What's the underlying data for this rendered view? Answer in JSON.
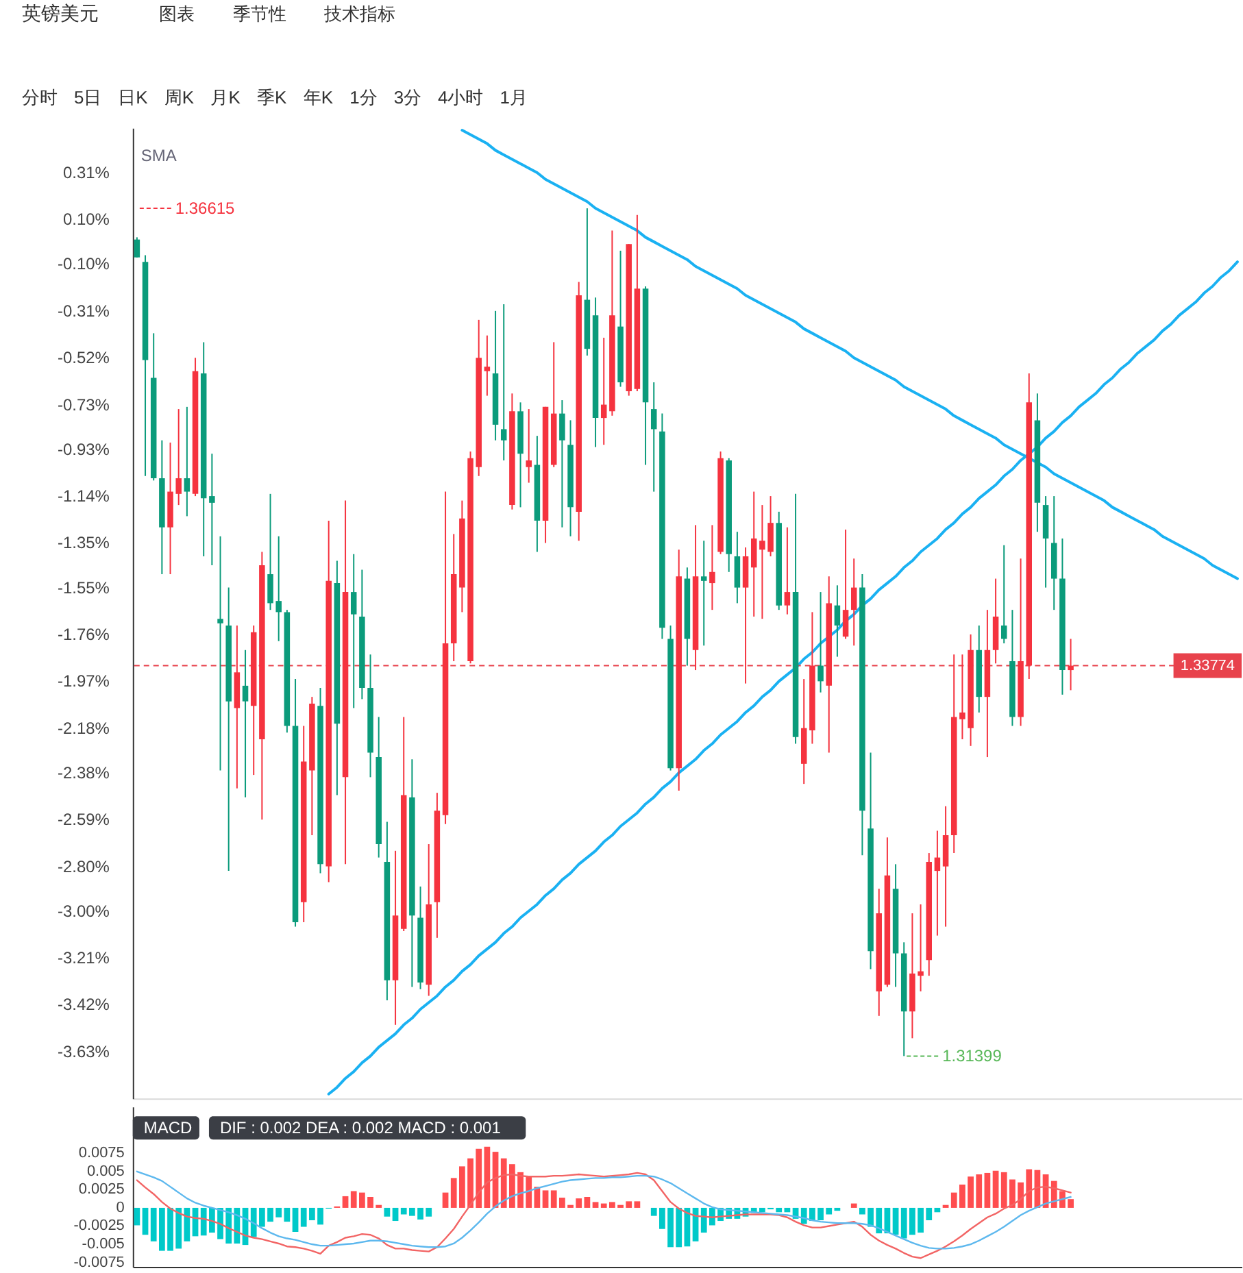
{
  "chart_data": [
    {
      "type": "other",
      "title": "英镑美元",
      "annotations": [
        "图表",
        "季节性",
        "技术指标"
      ]
    },
    {
      "type": "other",
      "annotations": [
        "分时",
        "5日",
        "日K",
        "周K",
        "月K",
        "季K",
        "年K",
        "1分",
        "3分",
        "4小时",
        "1月"
      ]
    },
    {
      "type": "candlestick",
      "categories": [
        null,
        null,
        null,
        null,
        null,
        null,
        null,
        null,
        null,
        null,
        null,
        null,
        null,
        null,
        null,
        null,
        null,
        null,
        null,
        null,
        null,
        null,
        null,
        null,
        null,
        null,
        null,
        null,
        null,
        null,
        null,
        null,
        null,
        null,
        null,
        null,
        null,
        null,
        null,
        null,
        null,
        null,
        null,
        null,
        null,
        null,
        null,
        null,
        null,
        null,
        null,
        null,
        null,
        null,
        null,
        null,
        null,
        null,
        null,
        null,
        null,
        null,
        null,
        null,
        null,
        null,
        null,
        null,
        null,
        null,
        null,
        null,
        null,
        null,
        null,
        null,
        null,
        null,
        null,
        null,
        null,
        null,
        null,
        null,
        null,
        null,
        null,
        null,
        null,
        null,
        null,
        null,
        null,
        null,
        null,
        null,
        null,
        null,
        null,
        null,
        null,
        null,
        null,
        null,
        null,
        null,
        null,
        null,
        null,
        null,
        null,
        null,
        null,
        null,
        null,
        null,
        null,
        null,
        null,
        null,
        null,
        null,
        null,
        null,
        null,
        null,
        null,
        null,
        null,
        null,
        null,
        null,
        null
      ],
      "ohlc": [
        [
          0.01,
          0.02,
          -0.07,
          -0.07
        ],
        [
          -0.09,
          -0.06,
          -1.05,
          -0.53
        ],
        [
          -0.61,
          -0.41,
          -1.07,
          -1.06
        ],
        [
          -1.06,
          -0.89,
          -1.49,
          -1.28
        ],
        [
          -1.28,
          -0.9,
          -1.49,
          -1.12
        ],
        [
          -1.13,
          -0.75,
          -1.18,
          -1.06
        ],
        [
          -1.06,
          -0.74,
          -1.23,
          -1.12
        ],
        [
          -1.13,
          -0.52,
          -1.14,
          -0.58
        ],
        [
          -0.59,
          -0.45,
          -1.41,
          -1.15
        ],
        [
          -1.14,
          -0.95,
          -1.45,
          -1.17
        ],
        [
          -1.69,
          -1.32,
          -2.37,
          -1.71
        ],
        [
          -1.72,
          -1.55,
          -2.82,
          -2.06
        ],
        [
          -2.09,
          -1.72,
          -2.45,
          -1.93
        ],
        [
          -1.99,
          -1.83,
          -2.49,
          -2.06
        ],
        [
          -2.08,
          -1.72,
          -2.39,
          -1.75
        ],
        [
          -2.23,
          -1.39,
          -2.59,
          -1.45
        ],
        [
          -1.49,
          -1.13,
          -1.65,
          -1.62
        ],
        [
          -1.61,
          -1.32,
          -1.79,
          -1.66
        ],
        [
          -1.66,
          -1.65,
          -2.2,
          -2.17
        ],
        [
          -2.17,
          -1.96,
          -3.07,
          -3.05
        ],
        [
          -2.96,
          -2.17,
          -3.05,
          -2.33
        ],
        [
          -2.37,
          -2.04,
          -2.66,
          -2.07
        ],
        [
          -2.08,
          -2.0,
          -2.83,
          -2.79
        ],
        [
          -2.8,
          -1.25,
          -2.87,
          -1.52
        ],
        [
          -1.53,
          -1.43,
          -2.48,
          -2.16
        ],
        [
          -2.4,
          -1.16,
          -2.79,
          -1.57
        ],
        [
          -1.57,
          -1.4,
          -2.09,
          -1.67
        ],
        [
          -1.68,
          -1.47,
          -2.05,
          -2.0
        ],
        [
          -2.0,
          -1.85,
          -2.4,
          -2.29
        ],
        [
          -2.31,
          -2.13,
          -2.76,
          -2.7
        ],
        [
          -2.78,
          -2.6,
          -3.4,
          -3.31
        ],
        [
          -3.31,
          -2.73,
          -3.51,
          -3.02
        ],
        [
          -3.08,
          -2.13,
          -3.09,
          -2.48
        ],
        [
          -2.49,
          -2.32,
          -3.34,
          -3.02
        ],
        [
          -3.03,
          -2.89,
          -3.35,
          -3.32
        ],
        [
          -3.33,
          -2.7,
          -3.38,
          -2.97
        ],
        [
          -2.96,
          -2.47,
          -3.12,
          -2.55
        ],
        [
          -2.57,
          -1.12,
          -2.61,
          -1.8
        ],
        [
          -1.8,
          -1.31,
          -1.88,
          -1.49
        ],
        [
          -1.55,
          -1.16,
          -1.66,
          -1.24
        ],
        [
          -1.88,
          -0.94,
          -1.89,
          -0.97
        ],
        [
          -1.01,
          -0.35,
          -1.05,
          -0.52
        ],
        [
          -0.58,
          -0.42,
          -0.69,
          -0.56
        ],
        [
          -0.59,
          -0.31,
          -0.89,
          -0.82
        ],
        [
          -0.84,
          -0.28,
          -0.98,
          -0.89
        ],
        [
          -1.18,
          -0.68,
          -1.2,
          -0.76
        ],
        [
          -0.76,
          -0.72,
          -1.19,
          -0.95
        ],
        [
          -1.01,
          -0.75,
          -1.08,
          -0.98
        ],
        [
          -1.0,
          -0.87,
          -1.39,
          -1.25
        ],
        [
          -1.25,
          -0.74,
          -1.35,
          -0.74
        ],
        [
          -1.0,
          -0.45,
          -1.01,
          -0.77
        ],
        [
          -0.77,
          -0.71,
          -1.28,
          -0.89
        ],
        [
          -0.91,
          -0.8,
          -1.32,
          -1.19
        ],
        [
          -1.21,
          -0.18,
          -1.34,
          -0.24
        ],
        [
          -0.26,
          0.15,
          -0.51,
          -0.48
        ],
        [
          -0.33,
          -0.25,
          -0.92,
          -0.79
        ],
        [
          -0.79,
          -0.43,
          -0.91,
          -0.73
        ],
        [
          -0.76,
          0.05,
          -0.78,
          -0.33
        ],
        [
          -0.38,
          -0.04,
          -0.65,
          -0.63
        ],
        [
          -0.67,
          -0.01,
          -0.69,
          -0.01
        ],
        [
          -0.66,
          0.12,
          -0.67,
          -0.21
        ],
        [
          -0.21,
          -0.2,
          -1.0,
          -0.72
        ],
        [
          -0.75,
          -0.63,
          -1.12,
          -0.84
        ],
        [
          -0.85,
          -0.77,
          -1.78,
          -1.73
        ],
        [
          -1.78,
          -1.72,
          -2.37,
          -2.36
        ],
        [
          -2.36,
          -1.38,
          -2.46,
          -1.5
        ],
        [
          -1.51,
          -1.46,
          -1.9,
          -1.78
        ],
        [
          -1.83,
          -1.27,
          -1.92,
          -1.5
        ],
        [
          -1.5,
          -1.34,
          -1.81,
          -1.52
        ],
        [
          -1.53,
          -1.27,
          -1.65,
          -1.48
        ],
        [
          -1.39,
          -0.94,
          -1.4,
          -0.97
        ],
        [
          -0.98,
          -0.97,
          -1.48,
          -1.4
        ],
        [
          -1.41,
          -1.3,
          -1.62,
          -1.55
        ],
        [
          -1.55,
          -1.37,
          -1.98,
          -1.41
        ],
        [
          -1.46,
          -1.12,
          -1.68,
          -1.33
        ],
        [
          -1.38,
          -1.18,
          -1.69,
          -1.34
        ],
        [
          -1.39,
          -1.14,
          -1.41,
          -1.26
        ],
        [
          -1.26,
          -1.21,
          -1.65,
          -1.63
        ],
        [
          -1.63,
          -1.28,
          -1.67,
          -1.57
        ],
        [
          -1.57,
          -1.13,
          -2.25,
          -2.22
        ],
        [
          -2.34,
          -1.96,
          -2.43,
          -2.18
        ],
        [
          -2.19,
          -1.66,
          -2.25,
          -1.9
        ],
        [
          -1.9,
          -1.57,
          -2.02,
          -1.97
        ],
        [
          -1.99,
          -1.5,
          -2.29,
          -1.62
        ],
        [
          -1.63,
          -1.54,
          -1.86,
          -1.72
        ],
        [
          -1.77,
          -1.29,
          -1.78,
          -1.65
        ],
        [
          -1.65,
          -1.42,
          -1.81,
          -1.55
        ],
        [
          -1.55,
          -1.49,
          -2.75,
          -2.55
        ],
        [
          -2.63,
          -2.29,
          -3.26,
          -3.18
        ],
        [
          -3.36,
          -2.9,
          -3.47,
          -3.01
        ],
        [
          -3.33,
          -2.67,
          -3.34,
          -2.84
        ],
        [
          -2.9,
          -2.79,
          -3.34,
          -3.19
        ],
        [
          -3.19,
          -3.14,
          -3.65,
          -3.45
        ],
        [
          -3.45,
          -3.01,
          -3.57,
          -3.28
        ],
        [
          -3.29,
          -2.97,
          -3.36,
          -3.27
        ],
        [
          -3.22,
          -2.74,
          -3.29,
          -2.78
        ],
        [
          -2.82,
          -2.64,
          -3.11,
          -2.76
        ],
        [
          -2.8,
          -2.53,
          -3.07,
          -2.66
        ],
        [
          -2.66,
          -1.85,
          -2.74,
          -2.13
        ],
        [
          -2.14,
          -1.85,
          -2.23,
          -2.11
        ],
        [
          -2.18,
          -1.76,
          -2.26,
          -1.83
        ],
        [
          -1.83,
          -1.72,
          -2.11,
          -2.04
        ],
        [
          -2.04,
          -1.65,
          -2.31,
          -1.83
        ],
        [
          -1.83,
          -1.51,
          -1.89,
          -1.68
        ],
        [
          -1.72,
          -1.36,
          -1.8,
          -1.78
        ],
        [
          -1.88,
          -1.65,
          -2.17,
          -2.13
        ],
        [
          -2.13,
          -1.42,
          -2.17,
          -1.88
        ],
        [
          -1.9,
          -0.59,
          -1.96,
          -0.72
        ],
        [
          -0.8,
          -0.68,
          -1.3,
          -1.17
        ],
        [
          -1.18,
          -1.14,
          -1.55,
          -1.33
        ],
        [
          -1.35,
          -1.14,
          -1.65,
          -1.51
        ],
        [
          -1.51,
          -1.33,
          -2.03,
          -1.92
        ],
        [
          -1.92,
          -1.78,
          -2.01,
          -1.9
        ],
        null,
        null,
        null,
        null,
        null,
        null,
        null,
        null,
        null,
        null,
        null,
        null,
        null,
        null,
        null,
        null,
        null,
        null,
        null,
        null
      ],
      "colors": [
        "#0b9b7b",
        "#0b9b7b",
        "#0b9b7b",
        "#0b9b7b",
        "#f5333f",
        "#f5333f",
        "#0b9b7b",
        "#f5333f",
        "#0b9b7b",
        "#0b9b7b",
        "#0b9b7b",
        "#0b9b7b",
        "#f5333f",
        "#0b9b7b",
        "#f5333f",
        "#f5333f",
        "#0b9b7b",
        "#0b9b7b",
        "#0b9b7b",
        "#0b9b7b",
        "#f5333f",
        "#f5333f",
        "#0b9b7b",
        "#f5333f",
        "#0b9b7b",
        "#f5333f",
        "#0b9b7b",
        "#0b9b7b",
        "#0b9b7b",
        "#0b9b7b",
        "#0b9b7b",
        "#f5333f",
        "#f5333f",
        "#0b9b7b",
        "#0b9b7b",
        "#f5333f",
        "#f5333f",
        "#f5333f",
        "#f5333f",
        "#f5333f",
        "#f5333f",
        "#f5333f",
        "#f5333f",
        "#0b9b7b",
        "#0b9b7b",
        "#f5333f",
        "#0b9b7b",
        "#f5333f",
        "#0b9b7b",
        "#f5333f",
        "#f5333f",
        "#0b9b7b",
        "#0b9b7b",
        "#f5333f",
        "#0b9b7b",
        "#0b9b7b",
        "#f5333f",
        "#f5333f",
        "#0b9b7b",
        "#f5333f",
        "#f5333f",
        "#0b9b7b",
        "#0b9b7b",
        "#0b9b7b",
        "#0b9b7b",
        "#f5333f",
        "#0b9b7b",
        "#f5333f",
        "#0b9b7b",
        "#f5333f",
        "#f5333f",
        "#0b9b7b",
        "#0b9b7b",
        "#f5333f",
        "#f5333f",
        "#f5333f",
        "#f5333f",
        "#0b9b7b",
        "#f5333f",
        "#0b9b7b",
        "#f5333f",
        "#f5333f",
        "#0b9b7b",
        "#f5333f",
        "#0b9b7b",
        "#f5333f",
        "#f5333f",
        "#0b9b7b",
        "#0b9b7b",
        "#f5333f",
        "#f5333f",
        "#0b9b7b",
        "#0b9b7b",
        "#f5333f",
        "#f5333f",
        "#f5333f",
        "#f5333f",
        "#f5333f",
        "#f5333f",
        "#f5333f",
        "#f5333f",
        "#0b9b7b",
        "#f5333f",
        "#f5333f",
        "#0b9b7b",
        "#0b9b7b",
        "#f5333f",
        "#f5333f",
        "#0b9b7b",
        "#0b9b7b",
        "#0b9b7b",
        "#0b9b7b",
        "#f5333f",
        null,
        null,
        null,
        null,
        null,
        null,
        null,
        null,
        null,
        null,
        null,
        null,
        null,
        null,
        null,
        null,
        null,
        null,
        null,
        null
      ],
      "series": [
        {
          "type": "line",
          "color": "#1ab1f2",
          "values": [
            null,
            null,
            null,
            null,
            null,
            null,
            null,
            null,
            null,
            null,
            null,
            null,
            null,
            null,
            null,
            null,
            null,
            null,
            null,
            null,
            null,
            null,
            null,
            null,
            null,
            null,
            null,
            null,
            null,
            null,
            null,
            null,
            null,
            null,
            null,
            null,
            null,
            null,
            null,
            0.5,
            0.48,
            0.46,
            0.44,
            0.41,
            0.39,
            0.37,
            0.35,
            0.33,
            0.31,
            0.28,
            0.26,
            0.24,
            0.22,
            0.2,
            0.18,
            0.15,
            0.13,
            0.11,
            0.09,
            0.07,
            0.05,
            0.02,
            0.0,
            -0.02,
            -0.04,
            -0.06,
            -0.08,
            -0.11,
            -0.13,
            -0.15,
            -0.17,
            -0.19,
            -0.21,
            -0.24,
            -0.26,
            -0.28,
            -0.3,
            -0.32,
            -0.34,
            -0.36,
            -0.39,
            -0.41,
            -0.43,
            -0.45,
            -0.47,
            -0.49,
            -0.52,
            -0.54,
            -0.56,
            -0.58,
            -0.6,
            -0.62,
            -0.65,
            -0.67,
            -0.69,
            -0.71,
            -0.73,
            -0.75,
            -0.78,
            -0.8,
            -0.82,
            -0.84,
            -0.86,
            -0.88,
            -0.91,
            -0.93,
            -0.95,
            -0.97,
            -0.99,
            -1.01,
            -1.04,
            -1.06,
            -1.08,
            -1.1,
            -1.12,
            -1.14,
            -1.16,
            -1.19,
            -1.21,
            -1.23,
            -1.25,
            -1.27,
            -1.29,
            -1.32,
            -1.34,
            -1.36,
            -1.38,
            -1.4,
            -1.42,
            -1.45,
            -1.47,
            -1.49,
            -1.51
          ]
        },
        {
          "type": "line",
          "color": "#1ab1f2",
          "values": [
            null,
            null,
            null,
            null,
            null,
            null,
            null,
            null,
            null,
            null,
            null,
            null,
            null,
            null,
            null,
            null,
            null,
            null,
            null,
            null,
            null,
            null,
            null,
            -3.82,
            -3.79,
            -3.75,
            -3.72,
            -3.68,
            -3.65,
            -3.61,
            -3.58,
            -3.55,
            -3.51,
            -3.48,
            -3.44,
            -3.41,
            -3.38,
            -3.34,
            -3.31,
            -3.27,
            -3.24,
            -3.2,
            -3.17,
            -3.14,
            -3.1,
            -3.07,
            -3.03,
            -3.0,
            -2.97,
            -2.93,
            -2.9,
            -2.86,
            -2.83,
            -2.79,
            -2.76,
            -2.73,
            -2.69,
            -2.66,
            -2.62,
            -2.59,
            -2.56,
            -2.52,
            -2.49,
            -2.45,
            -2.42,
            -2.38,
            -2.35,
            -2.32,
            -2.28,
            -2.25,
            -2.21,
            -2.18,
            -2.15,
            -2.11,
            -2.08,
            -2.04,
            -2.01,
            -1.97,
            -1.94,
            -1.91,
            -1.87,
            -1.84,
            -1.8,
            -1.77,
            -1.74,
            -1.7,
            -1.67,
            -1.63,
            -1.6,
            -1.56,
            -1.53,
            -1.5,
            -1.46,
            -1.43,
            -1.39,
            -1.36,
            -1.33,
            -1.29,
            -1.26,
            -1.22,
            -1.19,
            -1.15,
            -1.12,
            -1.09,
            -1.05,
            -1.02,
            -0.98,
            -0.95,
            -0.92,
            -0.88,
            -0.85,
            -0.81,
            -0.78,
            -0.74,
            -0.71,
            -0.68,
            -0.64,
            -0.61,
            -0.57,
            -0.54,
            -0.5,
            -0.47,
            -0.44,
            -0.4,
            -0.37,
            -0.33,
            -0.3,
            -0.27,
            -0.23,
            -0.2,
            -0.16,
            -0.13,
            -0.09
          ]
        }
      ],
      "ylim": [
        -3.84,
        0.51
      ],
      "yticks": [
        {
          "value": 0.31,
          "label": "0.31%"
        },
        {
          "value": 0.1,
          "label": "0.10%"
        },
        {
          "value": -0.1,
          "label": "-0.10%"
        },
        {
          "value": -0.31,
          "label": "-0.31%"
        },
        {
          "value": -0.52,
          "label": "-0.52%"
        },
        {
          "value": -0.73,
          "label": "-0.73%"
        },
        {
          "value": -0.93,
          "label": "-0.93%"
        },
        {
          "value": -1.14,
          "label": "-1.14%"
        },
        {
          "value": -1.35,
          "label": "-1.35%"
        },
        {
          "value": -1.55,
          "label": "-1.55%"
        },
        {
          "value": -1.76,
          "label": "-1.76%"
        },
        {
          "value": -1.97,
          "label": "-1.97%"
        },
        {
          "value": -2.18,
          "label": "-2.18%"
        },
        {
          "value": -2.38,
          "label": "-2.38%"
        },
        {
          "value": -2.59,
          "label": "-2.59%"
        },
        {
          "value": -2.8,
          "label": "-2.80%"
        },
        {
          "value": -3.0,
          "label": "-3.00%"
        },
        {
          "value": -3.21,
          "label": "-3.21%"
        },
        {
          "value": -3.42,
          "label": "-3.42%"
        },
        {
          "value": -3.63,
          "label": "-3.63%"
        }
      ],
      "tick_labels": "y",
      "grid": false,
      "ref_lines": [
        {
          "axis": "y",
          "value": -1.9,
          "color": "#e8424c",
          "line_style": "dashed"
        }
      ],
      "annotations": [
        "SMA",
        "1.36615",
        "1.31399",
        "1.33774"
      ]
    },
    {
      "type": "bar",
      "categories": [
        null,
        null,
        null,
        null,
        null,
        null,
        null,
        null,
        null,
        null,
        null,
        null,
        null,
        null,
        null,
        null,
        null,
        null,
        null,
        null,
        null,
        null,
        null,
        null,
        null,
        null,
        null,
        null,
        null,
        null,
        null,
        null,
        null,
        null,
        null,
        null,
        null,
        null,
        null,
        null,
        null,
        null,
        null,
        null,
        null,
        null,
        null,
        null,
        null,
        null,
        null,
        null,
        null,
        null,
        null,
        null,
        null,
        null,
        null,
        null,
        null,
        null,
        null,
        null,
        null,
        null,
        null,
        null,
        null,
        null,
        null,
        null,
        null,
        null,
        null,
        null,
        null,
        null,
        null,
        null,
        null,
        null,
        null,
        null,
        null,
        null,
        null,
        null,
        null,
        null,
        null,
        null,
        null,
        null,
        null,
        null,
        null,
        null,
        null,
        null,
        null,
        null,
        null,
        null,
        null,
        null,
        null,
        null,
        null,
        null,
        null,
        null,
        null,
        null,
        null,
        null,
        null,
        null,
        null,
        null,
        null,
        null,
        null,
        null,
        null,
        null,
        null,
        null,
        null,
        null,
        null,
        null,
        null
      ],
      "series": [
        {
          "type": "bar",
          "values": [
            -0.0024,
            -0.0037,
            -0.0046,
            -0.0059,
            -0.0059,
            -0.0056,
            -0.0046,
            -0.0039,
            -0.0038,
            -0.0034,
            -0.0043,
            -0.0049,
            -0.0049,
            -0.0051,
            -0.004,
            -0.0026,
            -0.0019,
            -0.0013,
            -0.0019,
            -0.0033,
            -0.0026,
            -0.0017,
            -0.0023,
            -0.0001,
            0.0002,
            0.0016,
            0.0023,
            0.0021,
            0.0015,
            0.0004,
            -0.0012,
            -0.0018,
            -0.0009,
            -0.0011,
            -0.0016,
            -0.0012,
            null,
            0.0021,
            0.0041,
            0.0057,
            0.0068,
            0.0081,
            0.0084,
            0.0077,
            0.0068,
            0.006,
            0.0049,
            0.0044,
            0.0029,
            0.0024,
            0.0024,
            0.0014,
            0.0004,
            0.0013,
            0.0015,
            0.0008,
            0.0006,
            0.0008,
            0.0004,
            0.0009,
            0.0009,
            null,
            -0.0011,
            -0.0029,
            -0.0054,
            -0.0054,
            -0.0053,
            -0.0046,
            -0.0034,
            -0.0024,
            -0.0018,
            -0.0015,
            -0.0015,
            -0.0012,
            -0.0007,
            -0.0006,
            -0.0002,
            -0.0006,
            -0.0006,
            -0.0015,
            -0.0022,
            -0.0018,
            -0.0017,
            -0.0009,
            -0.0004,
            null,
            0.0006,
            -0.0009,
            -0.0026,
            -0.0035,
            -0.0035,
            -0.0037,
            -0.0042,
            -0.0037,
            -0.0034,
            -0.0017,
            -0.0006,
            0.0004,
            0.0021,
            0.0032,
            0.0043,
            0.0046,
            0.0048,
            0.0051,
            0.0049,
            0.0039,
            0.0035,
            0.0053,
            0.0052,
            0.0046,
            0.0037,
            0.0023,
            0.0012,
            null,
            null,
            null,
            null,
            null,
            null,
            null,
            null,
            null,
            null,
            null,
            null,
            null,
            null,
            null,
            null,
            null,
            null,
            null,
            null
          ],
          "colors": [
            "#00c9c9",
            "#00c9c9",
            "#00c9c9",
            "#00c9c9",
            "#00c9c9",
            "#00c9c9",
            "#00c9c9",
            "#00c9c9",
            "#00c9c9",
            "#00c9c9",
            "#00c9c9",
            "#00c9c9",
            "#00c9c9",
            "#00c9c9",
            "#00c9c9",
            "#00c9c9",
            "#00c9c9",
            "#00c9c9",
            "#00c9c9",
            "#00c9c9",
            "#00c9c9",
            "#00c9c9",
            "#00c9c9",
            "#00c9c9",
            "#ff4d4f",
            "#ff4d4f",
            "#ff4d4f",
            "#ff4d4f",
            "#ff4d4f",
            "#ff4d4f",
            "#00c9c9",
            "#00c9c9",
            "#00c9c9",
            "#00c9c9",
            "#00c9c9",
            "#00c9c9",
            null,
            "#ff4d4f",
            "#ff4d4f",
            "#ff4d4f",
            "#ff4d4f",
            "#ff4d4f",
            "#ff4d4f",
            "#ff4d4f",
            "#ff4d4f",
            "#ff4d4f",
            "#ff4d4f",
            "#ff4d4f",
            "#ff4d4f",
            "#ff4d4f",
            "#ff4d4f",
            "#ff4d4f",
            "#ff4d4f",
            "#ff4d4f",
            "#ff4d4f",
            "#ff4d4f",
            "#ff4d4f",
            "#ff4d4f",
            "#ff4d4f",
            "#ff4d4f",
            "#ff4d4f",
            null,
            "#00c9c9",
            "#00c9c9",
            "#00c9c9",
            "#00c9c9",
            "#00c9c9",
            "#00c9c9",
            "#00c9c9",
            "#00c9c9",
            "#00c9c9",
            "#00c9c9",
            "#00c9c9",
            "#00c9c9",
            "#00c9c9",
            "#00c9c9",
            "#00c9c9",
            "#00c9c9",
            "#00c9c9",
            "#00c9c9",
            "#00c9c9",
            "#00c9c9",
            "#00c9c9",
            "#00c9c9",
            "#00c9c9",
            null,
            "#ff4d4f",
            "#00c9c9",
            "#00c9c9",
            "#00c9c9",
            "#00c9c9",
            "#00c9c9",
            "#00c9c9",
            "#00c9c9",
            "#00c9c9",
            "#00c9c9",
            "#00c9c9",
            "#ff4d4f",
            "#ff4d4f",
            "#ff4d4f",
            "#ff4d4f",
            "#ff4d4f",
            "#ff4d4f",
            "#ff4d4f",
            "#ff4d4f",
            "#ff4d4f",
            "#ff4d4f",
            "#ff4d4f",
            "#ff4d4f",
            "#ff4d4f",
            "#ff4d4f",
            "#ff4d4f",
            "#ff4d4f",
            null,
            null,
            null,
            null,
            null,
            null,
            null,
            null,
            null,
            null,
            null,
            null,
            null,
            null,
            null,
            null,
            null,
            null,
            null,
            null
          ]
        },
        {
          "type": "line",
          "color": "#f26464",
          "values": [
            0.0038,
            0.0028,
            0.0019,
            0.0008,
            -0.0001,
            -0.0007,
            -0.0012,
            -0.0014,
            -0.0015,
            -0.0018,
            -0.0022,
            -0.0028,
            -0.0033,
            -0.0038,
            -0.0041,
            -0.0043,
            -0.0046,
            -0.0049,
            -0.0053,
            -0.0054,
            -0.0056,
            -0.0059,
            -0.0063,
            -0.0052,
            -0.0047,
            -0.0041,
            -0.0039,
            -0.0036,
            -0.0037,
            -0.0042,
            -0.0051,
            -0.0056,
            -0.0056,
            -0.0058,
            -0.0059,
            -0.006,
            -0.0054,
            -0.0042,
            -0.0029,
            -0.0012,
            0.0004,
            0.0021,
            0.0035,
            0.0041,
            0.0045,
            0.0046,
            0.0044,
            0.0043,
            0.0043,
            0.0043,
            0.0044,
            0.0044,
            0.0045,
            0.0046,
            0.0045,
            0.0044,
            0.0043,
            0.0044,
            0.0045,
            0.0046,
            0.0048,
            0.0046,
            0.0038,
            0.0023,
            0.0008,
            -0.0001,
            -0.0007,
            -0.0011,
            -0.0012,
            -0.0013,
            -0.0012,
            -0.0011,
            -0.001,
            -0.0009,
            -0.0009,
            -0.0009,
            -0.0009,
            -0.001,
            -0.0013,
            -0.0019,
            -0.0024,
            -0.0027,
            -0.0027,
            -0.0025,
            -0.0023,
            -0.0021,
            -0.0019,
            -0.0026,
            -0.0037,
            -0.0045,
            -0.0051,
            -0.0056,
            -0.0062,
            -0.0067,
            -0.0069,
            -0.0064,
            -0.0059,
            -0.0053,
            -0.0046,
            -0.0038,
            -0.0029,
            -0.0021,
            -0.0013,
            -0.0008,
            -0.0001,
            0.0004,
            0.0012,
            0.0023,
            0.0028,
            0.0029,
            0.0027,
            0.0024,
            0.0021,
            null,
            null,
            null,
            null,
            null,
            null,
            null,
            null,
            null,
            null,
            null,
            null,
            null,
            null,
            null,
            null,
            null,
            null,
            null,
            null
          ]
        },
        {
          "type": "line",
          "color": "#5db8ee",
          "values": [
            0.005,
            0.0046,
            0.0042,
            0.0037,
            0.0029,
            0.0021,
            0.0013,
            0.0007,
            0.0003,
            0.0,
            -0.0003,
            -0.0006,
            -0.001,
            -0.0015,
            -0.0021,
            -0.0028,
            -0.0034,
            -0.0039,
            -0.0042,
            -0.0044,
            -0.0047,
            -0.005,
            -0.0052,
            -0.0052,
            -0.0051,
            -0.005,
            -0.0049,
            -0.0047,
            -0.0045,
            -0.0045,
            -0.0046,
            -0.0048,
            -0.005,
            -0.0052,
            -0.0053,
            -0.0054,
            -0.0054,
            -0.0053,
            -0.0049,
            -0.0041,
            -0.0031,
            -0.002,
            -0.0008,
            0.0002,
            0.001,
            0.0016,
            0.002,
            0.0023,
            0.0027,
            0.003,
            0.0033,
            0.0036,
            0.0038,
            0.0039,
            0.004,
            0.0041,
            0.0041,
            0.0042,
            0.0042,
            0.0043,
            0.0044,
            0.0044,
            0.0043,
            0.0039,
            0.0034,
            0.0027,
            0.002,
            0.0013,
            0.0006,
            0.0001,
            -0.0002,
            -0.0003,
            -0.0004,
            -0.0005,
            -0.0006,
            -0.0007,
            -0.0008,
            -0.0009,
            -0.001,
            -0.0012,
            -0.0014,
            -0.0017,
            -0.0019,
            -0.002,
            -0.0021,
            -0.0021,
            -0.0021,
            -0.0022,
            -0.0024,
            -0.0028,
            -0.0033,
            -0.0038,
            -0.0043,
            -0.0048,
            -0.0052,
            -0.0055,
            -0.0056,
            -0.0056,
            -0.0055,
            -0.0053,
            -0.005,
            -0.0045,
            -0.0039,
            -0.0033,
            -0.0026,
            -0.0018,
            -0.001,
            -0.0004,
            0.0001,
            0.0006,
            0.0009,
            0.0012,
            0.0015,
            null,
            null,
            null,
            null,
            null,
            null,
            null,
            null,
            null,
            null,
            null,
            null,
            null,
            null,
            null,
            null,
            null,
            null,
            null,
            null
          ]
        }
      ],
      "ylim": [
        -0.0081,
        0.0139
      ],
      "yticks": [
        0.0075,
        0.005,
        0.0025,
        0,
        -0.0025,
        -0.005,
        -0.0075
      ],
      "tick_labels": "y",
      "grid": false,
      "annotations": [
        "MACD",
        "DIF : 0.002  DEA : 0.002  MACD : 0.001"
      ]
    }
  ]
}
